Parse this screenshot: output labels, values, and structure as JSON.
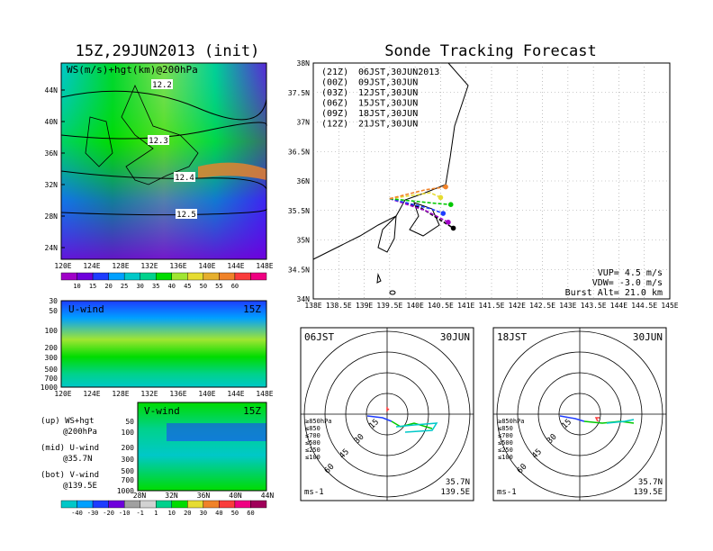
{
  "titles": {
    "left": "15Z,29JUN2013 (init)",
    "right": "Sonde Tracking Forecast"
  },
  "top_map": {
    "label": "WS(m/s)+hgt(km)@200hPa",
    "lat_ticks": [
      "44N",
      "40N",
      "36N",
      "32N",
      "28N",
      "24N"
    ],
    "lon_ticks": [
      "120E",
      "124E",
      "128E",
      "132E",
      "136E",
      "140E",
      "144E",
      "148E"
    ],
    "contours": [
      "12.2",
      "12.3",
      "12.4",
      "12.5"
    ],
    "colorbar": [
      "10",
      "15",
      "20",
      "25",
      "30",
      "35",
      "40",
      "45",
      "50",
      "55",
      "60"
    ],
    "colorbar_colors": [
      "#a000c8",
      "#6e00dc",
      "#1e3cff",
      "#00a0ff",
      "#00c8c8",
      "#00d28c",
      "#00dc00",
      "#a0e632",
      "#e6dc32",
      "#e6af2d",
      "#f08228",
      "#fa3c3c",
      "#f00082"
    ]
  },
  "u_panel": {
    "label": "U-wind",
    "time": "15Z",
    "levels": [
      "30",
      "50",
      "100",
      "200",
      "300",
      "500",
      "700",
      "1000"
    ],
    "lon_ticks": [
      "120E",
      "124E",
      "128E",
      "132E",
      "136E",
      "140E",
      "144E",
      "148E"
    ]
  },
  "v_panel": {
    "label": "V-wind",
    "time": "15Z",
    "levels": [
      "50",
      "100",
      "200",
      "300",
      "500",
      "700",
      "1000"
    ],
    "lat_ticks": [
      "28N",
      "32N",
      "36N",
      "40N",
      "44N"
    ],
    "colorbar": [
      "-40",
      "-30",
      "-20",
      "-10",
      "-1",
      "1",
      "10",
      "20",
      "30",
      "40",
      "50",
      "60"
    ],
    "colorbar_colors": [
      "#00c8c8",
      "#00a0ff",
      "#1e3cff",
      "#6e00dc",
      "#a0a0a0",
      "#d2d2d2",
      "#00d28c",
      "#00dc00",
      "#e6dc32",
      "#f08228",
      "#fa3c3c",
      "#f00082",
      "#a0005a"
    ]
  },
  "legend_notes": [
    {
      "a": "(up) WS+hgt",
      "b": "@200hPa"
    },
    {
      "a": "(mid) U-wind",
      "b": "@35.7N"
    },
    {
      "a": "(bot) V-wind",
      "b": "@139.5E"
    }
  ],
  "track_map": {
    "lat_ticks": [
      "38N",
      "37.5N",
      "37N",
      "36.5N",
      "36N",
      "35.5N",
      "35N",
      "34.5N",
      "34N"
    ],
    "lon_ticks": [
      "138E",
      "138.5E",
      "139E",
      "139.5E",
      "140E",
      "140.5E",
      "141E",
      "141.5E",
      "142E",
      "142.5E",
      "143E",
      "143.5E",
      "144E",
      "144.5E",
      "145E"
    ],
    "legend": [
      {
        "code": "(21Z)",
        "time": "06JST,30JUN2013",
        "color": "#000000"
      },
      {
        "code": "(00Z)",
        "time": "09JST,30JUN",
        "color": "#a000c8"
      },
      {
        "code": "(03Z)",
        "time": "12JST,30JUN",
        "color": "#1e3cff"
      },
      {
        "code": "(06Z)",
        "time": "15JST,30JUN",
        "color": "#00c800"
      },
      {
        "code": "(09Z)",
        "time": "18JST,30JUN",
        "color": "#e6dc32"
      },
      {
        "code": "(12Z)",
        "time": "21JST,30JUN",
        "color": "#f08228"
      }
    ],
    "params": [
      "VUP= 4.5 m/s",
      "VDW= -3.0 m/s",
      "Burst Alt= 21.0 km"
    ]
  },
  "hodographs": [
    {
      "time": "06JST",
      "date": "30JUN",
      "lat": "35.7N",
      "lon": "139.5E",
      "unit": "ms-1",
      "rings": [
        "15",
        "30",
        "45",
        "60"
      ]
    },
    {
      "time": "18JST",
      "date": "30JUN",
      "lat": "35.7N",
      "lon": "139.5E",
      "unit": "ms-1",
      "rings": [
        "15",
        "30",
        "45",
        "60"
      ]
    }
  ],
  "hodo_levels": [
    {
      "label": "≥850hPa",
      "color": "#fa3c3c"
    },
    {
      "label": "≤850",
      "color": "#f08228"
    },
    {
      "label": "≤700",
      "color": "#e6dc32"
    },
    {
      "label": "≤500",
      "color": "#00c800"
    },
    {
      "label": "≤250",
      "color": "#00c8c8"
    },
    {
      "label": "≤100",
      "color": "#1e3cff"
    }
  ],
  "chart_data": {
    "type": "line",
    "title": "Sonde Tracking Forecast",
    "xlim": [
      138,
      145
    ],
    "ylim": [
      34,
      38
    ],
    "series": [
      {
        "name": "06JST,30JUN2013",
        "x": [
          139.5,
          140.1,
          140.75
        ],
        "y": [
          35.7,
          35.55,
          35.2
        ]
      },
      {
        "name": "09JST,30JUN",
        "x": [
          139.5,
          140.2,
          140.65
        ],
        "y": [
          35.7,
          35.5,
          35.3
        ]
      },
      {
        "name": "12JST,30JUN",
        "x": [
          139.5,
          140.3,
          140.55
        ],
        "y": [
          35.7,
          35.53,
          35.45
        ]
      },
      {
        "name": "15JST,30JUN",
        "x": [
          139.5,
          140.4,
          140.7
        ],
        "y": [
          35.7,
          35.62,
          35.6
        ]
      },
      {
        "name": "18JST,30JUN",
        "x": [
          139.5,
          140.3,
          140.5
        ],
        "y": [
          35.7,
          35.8,
          35.72
        ]
      },
      {
        "name": "21JST,30JUN",
        "x": [
          139.5,
          140.2,
          140.6
        ],
        "y": [
          35.7,
          35.85,
          35.9
        ]
      }
    ]
  }
}
